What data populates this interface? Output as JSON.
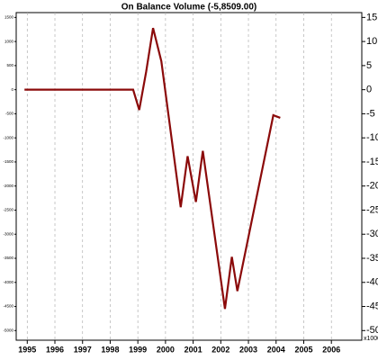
{
  "chart_data": {
    "type": "line",
    "title": "On Balance Volume (-5,8509.00)",
    "x_unit_label": "x1000",
    "x": [
      1994.9,
      1998.83,
      1999.05,
      1999.3,
      1999.55,
      1999.85,
      2000.55,
      2000.8,
      2001.1,
      2001.35,
      2002.15,
      2002.4,
      2002.6,
      2003.9,
      2004.15
    ],
    "series": [
      {
        "name": "On Balance Volume",
        "color": "#8b0a0a",
        "axis": "y2",
        "values": [
          0,
          0,
          -4.2,
          3.7,
          12.8,
          5.9,
          -24.4,
          -13.8,
          -23.3,
          -12.7,
          -45.5,
          -34.7,
          -41.8,
          -5.3,
          -5.85
        ]
      }
    ],
    "xlim": [
      1994.6,
      2007.1
    ],
    "xticks": [
      1995,
      1996,
      1997,
      1998,
      1999,
      2000,
      2001,
      2002,
      2003,
      2004,
      2005,
      2006
    ],
    "ylim": [
      -5200,
      1600
    ],
    "yticks": [
      1500,
      1000,
      500,
      0,
      -500,
      -1000,
      -1500,
      -2000,
      -2500,
      -3000,
      -3500,
      -4000,
      -4500,
      -5000
    ],
    "y2lim": [
      -52,
      16
    ],
    "y2ticks": [
      15,
      10,
      5,
      0,
      -5,
      -10,
      -15,
      -20,
      -25,
      -30,
      -35,
      -40,
      -45,
      -50
    ],
    "grid": true
  }
}
